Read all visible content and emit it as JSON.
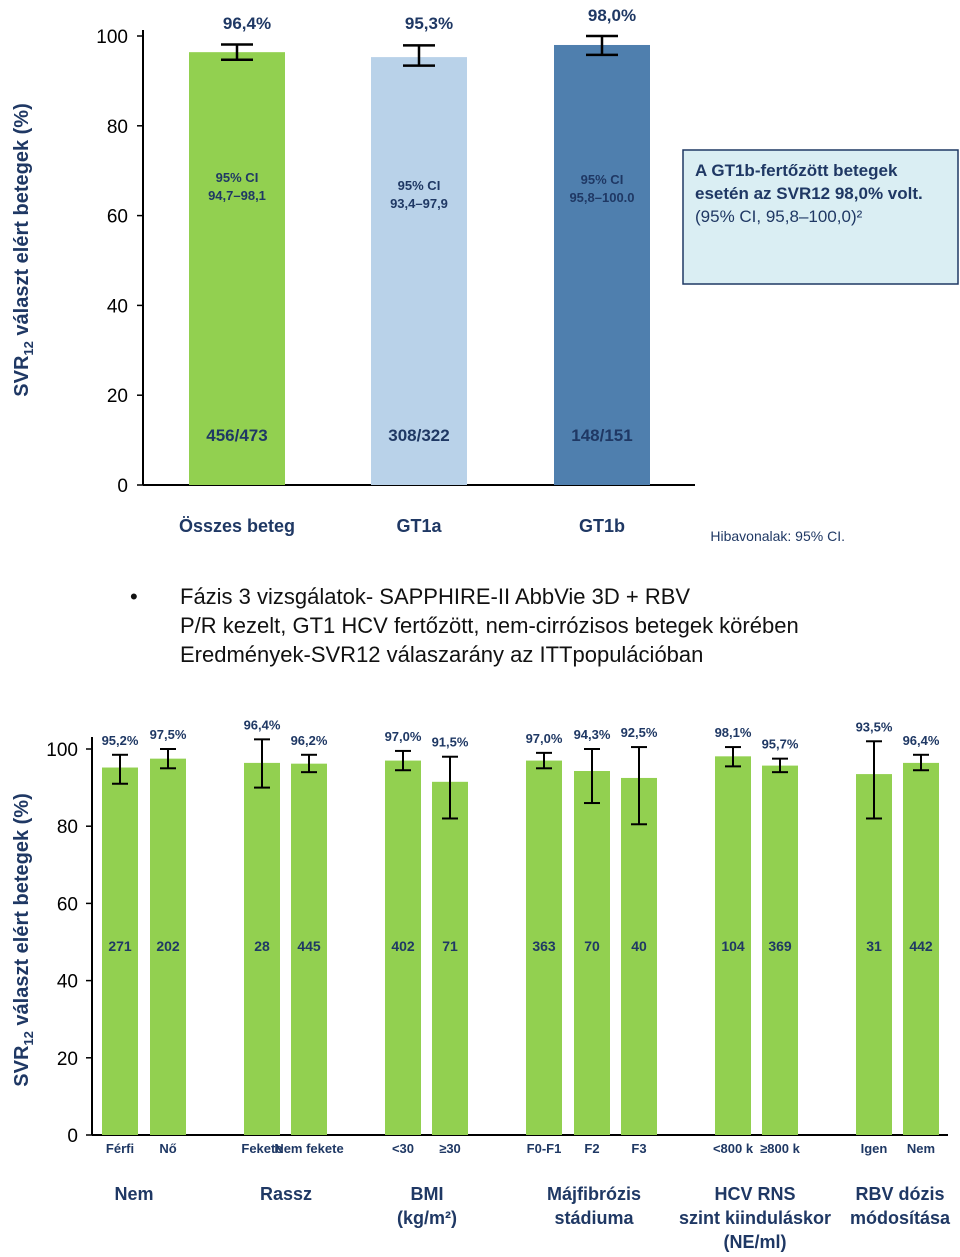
{
  "chart_data": [
    {
      "type": "bar",
      "ylabel": "SVR12 választ elért betegek (%)",
      "ylim": [
        0,
        100
      ],
      "yticks": [
        0,
        20,
        40,
        60,
        80,
        100
      ],
      "categories": [
        "Összes beteg",
        "GT1a",
        "GT1b"
      ],
      "values": [
        96.4,
        95.3,
        98.0
      ],
      "value_labels": [
        "96,4%",
        "95,3%",
        "98,0%"
      ],
      "ci": [
        [
          94.7,
          98.1
        ],
        [
          93.4,
          97.9
        ],
        [
          95.8,
          100.0
        ]
      ],
      "ci_labels": [
        {
          "head": "95% CI",
          "range": "94,7–98,1"
        },
        {
          "head": "95% CI",
          "range": "93,4–97,9"
        },
        {
          "head": "95% CI",
          "range": "95,8–100.0"
        }
      ],
      "counts": [
        "456/473",
        "308/322",
        "148/151"
      ],
      "colors": [
        "#92d050",
        "#b9d2e9",
        "#4f7fae"
      ],
      "callout": {
        "line1": "A GT1b-fertőzött betegek",
        "line2": "esetén az SVR12 98,0% volt.",
        "line3": "(95% CI, 95,8–100,0)²"
      },
      "footnote": "Hibavonalak: 95% CI."
    },
    {
      "type": "bar",
      "ylabel": "SVR12 választ elért betegek (%)",
      "ylim": [
        0,
        100
      ],
      "yticks": [
        0,
        20,
        40,
        60,
        80,
        100
      ],
      "bar_color": "#92d050",
      "bars": [
        {
          "label": "Férfi",
          "value": 95.2,
          "value_label": "95,2%",
          "ci": [
            91.0,
            98.5
          ],
          "n": "271"
        },
        {
          "label": "Nő",
          "value": 97.5,
          "value_label": "97,5%",
          "ci": [
            95.0,
            100.0
          ],
          "n": "202"
        },
        {
          "label": "Fekete",
          "value": 96.4,
          "value_label": "96,4%",
          "ci": [
            90.0,
            102.5
          ],
          "n": "28"
        },
        {
          "label": "Nem fekete",
          "value": 96.2,
          "value_label": "96,2%",
          "ci": [
            94.0,
            98.5
          ],
          "n": "445"
        },
        {
          "label": "<30",
          "value": 97.0,
          "value_label": "97,0%",
          "ci": [
            94.5,
            99.5
          ],
          "n": "402"
        },
        {
          "label": "≥30",
          "value": 91.5,
          "value_label": "91,5%",
          "ci": [
            82.0,
            98.0
          ],
          "n": "71"
        },
        {
          "label": "F0-F1",
          "value": 97.0,
          "value_label": "97,0%",
          "ci": [
            95.0,
            99.0
          ],
          "n": "363"
        },
        {
          "label": "F2",
          "value": 94.3,
          "value_label": "94,3%",
          "ci": [
            86.0,
            100.0
          ],
          "n": "70"
        },
        {
          "label": "F3",
          "value": 92.5,
          "value_label": "92,5%",
          "ci": [
            80.5,
            100.5
          ],
          "n": "40"
        },
        {
          "label": "<800 k",
          "value": 98.1,
          "value_label": "98,1%",
          "ci": [
            95.5,
            100.5
          ],
          "n": "104"
        },
        {
          "label": "≥800 k",
          "value": 95.7,
          "value_label": "95,7%",
          "ci": [
            94.0,
            97.5
          ],
          "n": "369"
        },
        {
          "label": "Igen",
          "value": 93.5,
          "value_label": "93,5%",
          "ci": [
            82.0,
            102.0
          ],
          "n": "31"
        },
        {
          "label": "Nem",
          "value": 96.4,
          "value_label": "96,4%",
          "ci": [
            94.5,
            98.5
          ],
          "n": "442"
        }
      ],
      "groups": [
        {
          "label": "Nem"
        },
        {
          "label": "Rassz"
        },
        {
          "label": "BMI (kg/m²)"
        },
        {
          "label": "Májfibrózis stádiuma"
        },
        {
          "label": "HCV RNS szint kiinduláskor (NE/ml)"
        },
        {
          "label": "RBV dózis módosítása"
        }
      ]
    }
  ],
  "bullet": {
    "symbol": "•",
    "line1": "Fázis 3 vizsgálatok- SAPPHIRE-II AbbVie 3D + RBV",
    "line2": "P/R kezelt, GT1 HCV fertőzött, nem-cirrózisos betegek körében",
    "line3": "Eredmények-SVR12 válaszarány az ITTpopulációban"
  }
}
